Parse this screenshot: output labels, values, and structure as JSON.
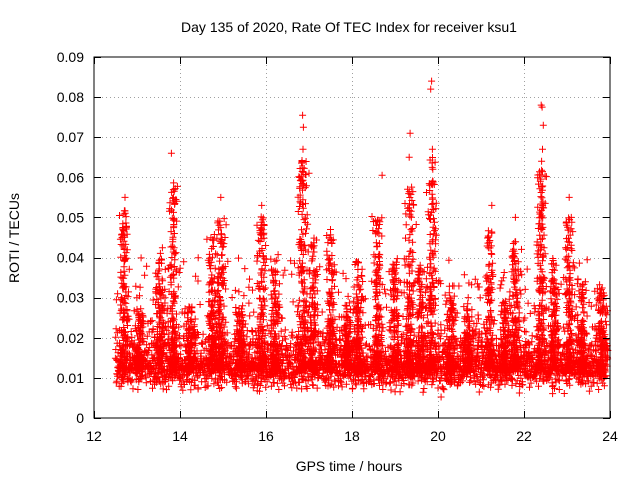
{
  "chart_data": {
    "type": "scatter",
    "title": "Day 135 of 2020, Rate Of TEC Index for receiver ksu1",
    "xlabel": "GPS time / hours",
    "ylabel": "ROTI / TECUs",
    "xlim": [
      12,
      24
    ],
    "ylim": [
      0,
      0.09
    ],
    "xticks": [
      12,
      14,
      16,
      18,
      20,
      22,
      24
    ],
    "xtick_labels": [
      "12",
      "14",
      "16",
      "18",
      "20",
      "22",
      "24"
    ],
    "yticks": [
      0,
      0.01,
      0.02,
      0.03,
      0.04,
      0.05,
      0.06,
      0.07,
      0.08,
      0.09
    ],
    "ytick_labels": [
      "0",
      "0.01",
      "0.02",
      "0.03",
      "0.04",
      "0.05",
      "0.06",
      "0.07",
      "0.08",
      "0.09"
    ],
    "grid": true,
    "marker": "+",
    "series_color": "#ff0000",
    "data_x_range": [
      12.5,
      23.95
    ],
    "baseline_band": [
      0.005,
      0.02
    ],
    "notable_points": [
      {
        "x": 12.72,
        "y": 0.055
      },
      {
        "x": 13.8,
        "y": 0.066
      },
      {
        "x": 13.85,
        "y": 0.055
      },
      {
        "x": 14.95,
        "y": 0.055
      },
      {
        "x": 15.9,
        "y": 0.053
      },
      {
        "x": 16.85,
        "y": 0.0755
      },
      {
        "x": 16.87,
        "y": 0.0725
      },
      {
        "x": 16.86,
        "y": 0.067
      },
      {
        "x": 17.0,
        "y": 0.061
      },
      {
        "x": 17.5,
        "y": 0.047
      },
      {
        "x": 18.7,
        "y": 0.0605
      },
      {
        "x": 19.35,
        "y": 0.071
      },
      {
        "x": 19.33,
        "y": 0.065
      },
      {
        "x": 19.85,
        "y": 0.084
      },
      {
        "x": 19.83,
        "y": 0.082
      },
      {
        "x": 19.87,
        "y": 0.067
      },
      {
        "x": 19.88,
        "y": 0.062
      },
      {
        "x": 21.25,
        "y": 0.053
      },
      {
        "x": 21.8,
        "y": 0.05
      },
      {
        "x": 22.4,
        "y": 0.078
      },
      {
        "x": 22.42,
        "y": 0.0775
      },
      {
        "x": 22.45,
        "y": 0.073
      },
      {
        "x": 22.43,
        "y": 0.067
      },
      {
        "x": 22.41,
        "y": 0.064
      },
      {
        "x": 22.38,
        "y": 0.059
      },
      {
        "x": 23.05,
        "y": 0.055
      },
      {
        "x": 23.1,
        "y": 0.05
      },
      {
        "x": 23.8,
        "y": 0.032
      }
    ],
    "burst_centers": [
      {
        "x": 12.7,
        "peak": 0.052
      },
      {
        "x": 13.05,
        "peak": 0.027
      },
      {
        "x": 13.55,
        "peak": 0.042
      },
      {
        "x": 13.85,
        "peak": 0.058
      },
      {
        "x": 14.25,
        "peak": 0.028
      },
      {
        "x": 14.75,
        "peak": 0.045
      },
      {
        "x": 14.95,
        "peak": 0.05
      },
      {
        "x": 15.4,
        "peak": 0.027
      },
      {
        "x": 15.9,
        "peak": 0.05
      },
      {
        "x": 16.2,
        "peak": 0.04
      },
      {
        "x": 16.85,
        "peak": 0.065
      },
      {
        "x": 17.1,
        "peak": 0.045
      },
      {
        "x": 17.5,
        "peak": 0.046
      },
      {
        "x": 17.9,
        "peak": 0.028
      },
      {
        "x": 18.15,
        "peak": 0.04
      },
      {
        "x": 18.6,
        "peak": 0.05
      },
      {
        "x": 19.0,
        "peak": 0.04
      },
      {
        "x": 19.35,
        "peak": 0.058
      },
      {
        "x": 19.6,
        "peak": 0.038
      },
      {
        "x": 19.85,
        "peak": 0.065
      },
      {
        "x": 20.3,
        "peak": 0.03
      },
      {
        "x": 20.7,
        "peak": 0.028
      },
      {
        "x": 21.2,
        "peak": 0.047
      },
      {
        "x": 21.55,
        "peak": 0.03
      },
      {
        "x": 21.8,
        "peak": 0.045
      },
      {
        "x": 22.4,
        "peak": 0.062
      },
      {
        "x": 22.7,
        "peak": 0.04
      },
      {
        "x": 23.05,
        "peak": 0.05
      },
      {
        "x": 23.35,
        "peak": 0.035
      },
      {
        "x": 23.8,
        "peak": 0.032
      }
    ]
  }
}
